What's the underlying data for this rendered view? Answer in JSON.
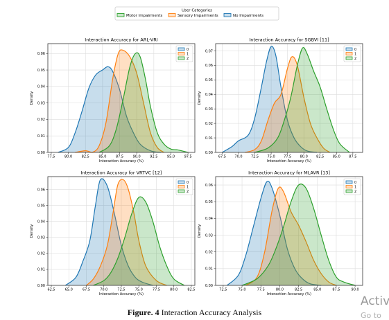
{
  "legend": {
    "title": "User Categories",
    "items": [
      {
        "label": "Motor Impairments",
        "color": "#2ca02c"
      },
      {
        "label": "Sensory Impairments",
        "color": "#ff7f0e"
      },
      {
        "label": "No Impairments",
        "color": "#1f77b4"
      }
    ]
  },
  "caption": {
    "label": "Figure. 4",
    "text": " Interaction Accuracy Analysis"
  },
  "watermark": {
    "line1": "Activ",
    "line2": "Go to"
  },
  "chart_data": [
    {
      "type": "area",
      "title": "Interaction Accuracy for ARL-VRI",
      "xlabel": "Interaction Accuracy (%)",
      "ylabel": "Density",
      "xlim": [
        77.0,
        98.5
      ],
      "ylim": [
        0,
        0.066
      ],
      "xticks": [
        "77.5",
        "80.0",
        "82.5",
        "85.0",
        "87.5",
        "90.0",
        "92.5",
        "95.0",
        "97.5"
      ],
      "yticks": [
        "0.00",
        "0.01",
        "0.02",
        "0.03",
        "0.04",
        "0.05",
        "0.06"
      ],
      "grid": true,
      "legend_position": "top-right",
      "series": [
        {
          "name": "0",
          "color": "#1f77b4",
          "x": [
            78.5,
            80.0,
            81.0,
            82.0,
            83.0,
            84.0,
            85.0,
            85.8,
            86.5,
            87.5,
            88.5,
            89.5,
            90.5,
            92.0,
            93.5
          ],
          "y": [
            0.0,
            0.003,
            0.012,
            0.025,
            0.039,
            0.047,
            0.05,
            0.052,
            0.049,
            0.038,
            0.022,
            0.012,
            0.005,
            0.001,
            0.0
          ]
        },
        {
          "name": "1",
          "color": "#ff7f0e",
          "x": [
            81.0,
            82.5,
            83.5,
            84.5,
            85.5,
            86.5,
            87.3,
            88.0,
            89.0,
            90.0,
            91.0,
            92.0,
            93.0,
            94.0
          ],
          "y": [
            0.0,
            0.001,
            0.0,
            0.004,
            0.018,
            0.045,
            0.06,
            0.062,
            0.058,
            0.048,
            0.03,
            0.012,
            0.003,
            0.0
          ]
        },
        {
          "name": "2",
          "color": "#2ca02c",
          "x": [
            84.5,
            86.0,
            87.0,
            88.0,
            89.0,
            89.8,
            90.5,
            91.3,
            92.0,
            93.0,
            94.0,
            95.0,
            96.0,
            97.5
          ],
          "y": [
            0.0,
            0.004,
            0.014,
            0.032,
            0.052,
            0.06,
            0.058,
            0.044,
            0.028,
            0.012,
            0.005,
            0.002,
            0.0015,
            0.0
          ]
        }
      ]
    },
    {
      "type": "area",
      "title": "Interaction Accuracy for SGBVI [11]",
      "xlabel": "Interaction Accuracy (%)",
      "ylabel": "Density",
      "xlim": [
        66.5,
        89.0
      ],
      "ylim": [
        0,
        0.075
      ],
      "xticks": [
        "67.5",
        "70.0",
        "72.5",
        "75.0",
        "77.5",
        "80.0",
        "82.5",
        "85.0",
        "87.5"
      ],
      "yticks": [
        "0.00",
        "0.01",
        "0.02",
        "0.03",
        "0.04",
        "0.05",
        "0.06",
        "0.07"
      ],
      "grid": true,
      "legend_position": "top-right",
      "series": [
        {
          "name": "0",
          "color": "#1f77b4",
          "x": [
            67.5,
            69.0,
            70.0,
            71.5,
            72.5,
            73.5,
            74.3,
            75.0,
            75.7,
            76.5,
            77.5,
            78.5,
            79.5,
            80.5,
            82.0
          ],
          "y": [
            0.0,
            0.004,
            0.008,
            0.012,
            0.024,
            0.045,
            0.063,
            0.073,
            0.067,
            0.045,
            0.022,
            0.01,
            0.004,
            0.001,
            0.0
          ]
        },
        {
          "name": "1",
          "color": "#ff7f0e",
          "x": [
            71.0,
            72.5,
            73.5,
            74.5,
            75.5,
            76.5,
            77.5,
            78.2,
            79.0,
            80.0,
            81.0,
            82.0,
            83.0,
            84.0
          ],
          "y": [
            0.0,
            0.002,
            0.008,
            0.022,
            0.034,
            0.04,
            0.058,
            0.066,
            0.06,
            0.038,
            0.02,
            0.01,
            0.003,
            0.0
          ]
        },
        {
          "name": "2",
          "color": "#2ca02c",
          "x": [
            72.5,
            74.5,
            76.0,
            77.0,
            78.0,
            79.0,
            79.8,
            80.5,
            81.5,
            82.5,
            83.5,
            84.5,
            85.5,
            87.0
          ],
          "y": [
            0.0,
            0.003,
            0.01,
            0.022,
            0.038,
            0.06,
            0.072,
            0.068,
            0.056,
            0.045,
            0.03,
            0.016,
            0.006,
            0.0
          ]
        }
      ]
    },
    {
      "type": "area",
      "title": "Interaction Accuracy for VRTVC [12]",
      "xlabel": "Interaction Accuracy (%)",
      "ylabel": "Density",
      "xlim": [
        62.0,
        83.0
      ],
      "ylim": [
        0,
        0.068
      ],
      "xticks": [
        "62.5",
        "65.0",
        "67.5",
        "70.0",
        "72.5",
        "75.0",
        "77.5",
        "80.0",
        "82.5"
      ],
      "yticks": [
        "0.00",
        "0.01",
        "0.02",
        "0.03",
        "0.04",
        "0.05",
        "0.06"
      ],
      "grid": true,
      "legend_position": "top-right",
      "series": [
        {
          "name": "0",
          "color": "#1f77b4",
          "x": [
            64.5,
            66.0,
            67.0,
            68.0,
            68.8,
            69.5,
            70.5,
            71.5,
            72.5,
            73.5,
            74.5,
            75.5,
            77.0
          ],
          "y": [
            0.0,
            0.005,
            0.015,
            0.028,
            0.05,
            0.066,
            0.062,
            0.045,
            0.025,
            0.012,
            0.005,
            0.002,
            0.0
          ]
        },
        {
          "name": "1",
          "color": "#ff7f0e",
          "x": [
            67.5,
            68.5,
            69.5,
            70.5,
            71.3,
            72.0,
            72.8,
            73.5,
            74.3,
            75.0,
            76.0,
            77.5,
            79.0
          ],
          "y": [
            0.0,
            0.004,
            0.012,
            0.025,
            0.045,
            0.063,
            0.066,
            0.06,
            0.045,
            0.028,
            0.012,
            0.003,
            0.0
          ]
        },
        {
          "name": "2",
          "color": "#2ca02c",
          "x": [
            68.5,
            70.0,
            71.0,
            72.0,
            73.0,
            74.0,
            75.0,
            76.0,
            77.0,
            78.0,
            79.0,
            80.0,
            81.5
          ],
          "y": [
            0.0,
            0.003,
            0.008,
            0.017,
            0.03,
            0.045,
            0.055,
            0.052,
            0.04,
            0.024,
            0.012,
            0.004,
            0.0
          ]
        }
      ]
    },
    {
      "type": "area",
      "title": "Interaction Accuracy for MLAVR [13]",
      "xlabel": "Interaction Accuracy (%)",
      "ylabel": "Density",
      "xlim": [
        71.5,
        91.0
      ],
      "ylim": [
        0,
        0.065
      ],
      "xticks": [
        "72.5",
        "75.0",
        "77.5",
        "80.0",
        "82.5",
        "85.0",
        "87.5",
        "90.0"
      ],
      "yticks": [
        "0.00",
        "0.01",
        "0.02",
        "0.03",
        "0.04",
        "0.05",
        "0.06"
      ],
      "grid": true,
      "legend_position": "top-right",
      "series": [
        {
          "name": "0",
          "color": "#1f77b4",
          "x": [
            73.0,
            74.5,
            75.5,
            76.5,
            77.5,
            78.3,
            79.0,
            80.0,
            81.0,
            82.0,
            83.0,
            84.0,
            85.5
          ],
          "y": [
            0.0,
            0.006,
            0.018,
            0.035,
            0.052,
            0.062,
            0.058,
            0.042,
            0.022,
            0.01,
            0.004,
            0.001,
            0.0
          ]
        },
        {
          "name": "1",
          "color": "#ff7f0e",
          "x": [
            75.5,
            77.0,
            78.0,
            79.0,
            79.8,
            80.5,
            81.5,
            82.5,
            83.5,
            84.5,
            85.5,
            86.5,
            87.5
          ],
          "y": [
            0.0,
            0.005,
            0.02,
            0.045,
            0.058,
            0.056,
            0.044,
            0.036,
            0.026,
            0.015,
            0.007,
            0.002,
            0.0
          ]
        },
        {
          "name": "2",
          "color": "#2ca02c",
          "x": [
            75.0,
            77.0,
            78.5,
            79.5,
            80.5,
            81.5,
            82.5,
            83.5,
            84.5,
            85.5,
            86.5,
            87.5,
            88.5,
            90.0
          ],
          "y": [
            0.0,
            0.004,
            0.012,
            0.022,
            0.035,
            0.05,
            0.06,
            0.058,
            0.046,
            0.03,
            0.015,
            0.005,
            0.002,
            0.0
          ]
        }
      ]
    }
  ]
}
